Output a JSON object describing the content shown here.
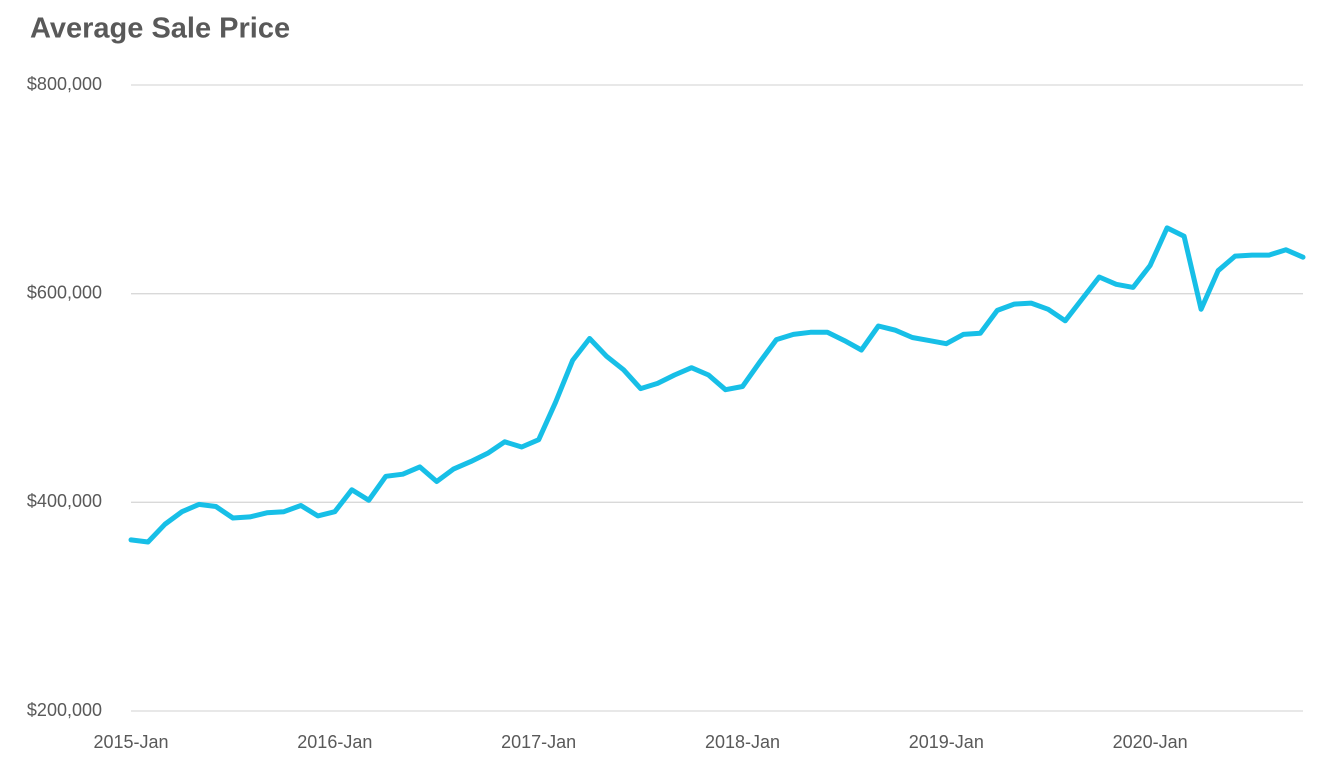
{
  "chart_data": {
    "type": "line",
    "title": "Average Sale Price",
    "categories": [
      "2015-Jan",
      null,
      null,
      null,
      null,
      null,
      null,
      null,
      null,
      null,
      null,
      null,
      "2016-Jan",
      null,
      null,
      null,
      null,
      null,
      null,
      null,
      null,
      null,
      null,
      null,
      "2017-Jan",
      null,
      null,
      null,
      null,
      null,
      null,
      null,
      null,
      null,
      null,
      null,
      "2018-Jan",
      null,
      null,
      null,
      null,
      null,
      null,
      null,
      null,
      null,
      null,
      null,
      "2019-Jan",
      null,
      null,
      null,
      null,
      null,
      null,
      null,
      null,
      null,
      null,
      null,
      "2020-Jan",
      null,
      null,
      null,
      null,
      null,
      null,
      null,
      null,
      null
    ],
    "series": [
      {
        "name": "Average Sale Price",
        "color": "#17bfe7",
        "values": [
          364000,
          362000,
          379000,
          391000,
          398000,
          396000,
          385000,
          386000,
          390000,
          391000,
          397000,
          387000,
          391000,
          412000,
          402000,
          425000,
          427000,
          434000,
          420000,
          432000,
          439000,
          447000,
          458000,
          453000,
          460000,
          496000,
          536000,
          557000,
          540000,
          527000,
          509000,
          514000,
          522000,
          529000,
          522000,
          508000,
          511000,
          534000,
          556000,
          561000,
          563000,
          563000,
          555000,
          546000,
          569000,
          565000,
          558000,
          555000,
          552000,
          561000,
          562000,
          584000,
          590000,
          591000,
          585000,
          574000,
          595000,
          616000,
          609000,
          606000,
          627000,
          663000,
          655000,
          585000,
          622000,
          636000,
          637000,
          637000,
          642000,
          635000
        ]
      }
    ],
    "ylim": [
      200000,
      800000
    ],
    "yticks": [
      {
        "value": 200000,
        "label": "$200,000"
      },
      {
        "value": 400000,
        "label": "$400,000"
      },
      {
        "value": 600000,
        "label": "$600,000"
      },
      {
        "value": 800000,
        "label": "$800,000"
      }
    ],
    "grid": true
  }
}
